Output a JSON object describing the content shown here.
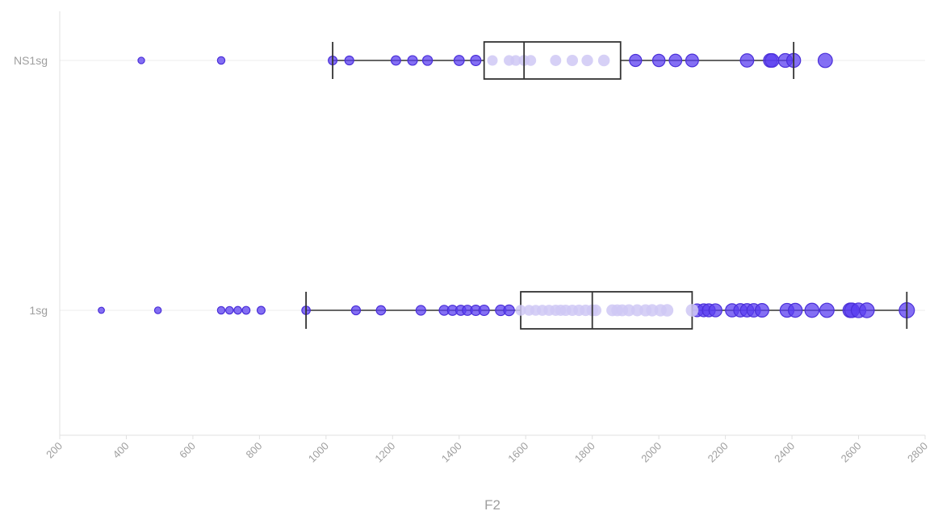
{
  "chart_data": {
    "type": "box",
    "orientation": "horizontal",
    "xlabel": "F2",
    "ylabel": "",
    "xlim": [
      200,
      2800
    ],
    "x_ticks": [
      "200",
      "400",
      "600",
      "800",
      "1000",
      "1200",
      "1400",
      "1600",
      "1800",
      "2000",
      "2200",
      "2400",
      "2600",
      "2800"
    ],
    "categories": [
      "NS1sg",
      "1sg"
    ],
    "grid": "horizontal-category-lines",
    "colors": {
      "point_fill": "#5b3ff0",
      "point_stroke": "#4a2fd8",
      "inbox_fill": "#cfc8f5",
      "box_stroke": "#333333",
      "grid": "#eeeeee",
      "axis": "#e0e0e0"
    },
    "groups": [
      {
        "category": "NS1sg",
        "box": {
          "min": 1020,
          "q1": 1475,
          "median": 1595,
          "q3": 1885,
          "max": 2405
        },
        "points": [
          445,
          685,
          1020,
          1070,
          1210,
          1260,
          1305,
          1400,
          1450,
          1500,
          1550,
          1570,
          1595,
          1615,
          1690,
          1740,
          1785,
          1835,
          1930,
          2000,
          2050,
          2100,
          2265,
          2335,
          2340,
          2380,
          2405,
          2500
        ]
      },
      {
        "category": "1sg",
        "box": {
          "min": 940,
          "q1": 1585,
          "median": 1800,
          "q3": 2100,
          "max": 2745
        },
        "points": [
          325,
          495,
          685,
          710,
          735,
          760,
          805,
          940,
          1090,
          1165,
          1285,
          1355,
          1380,
          1405,
          1425,
          1450,
          1475,
          1525,
          1550,
          1585,
          1610,
          1630,
          1650,
          1670,
          1690,
          1705,
          1720,
          1740,
          1760,
          1780,
          1800,
          1810,
          1860,
          1875,
          1890,
          1910,
          1935,
          1960,
          1980,
          2005,
          2025,
          2100,
          2115,
          2135,
          2150,
          2170,
          2220,
          2245,
          2265,
          2285,
          2310,
          2385,
          2410,
          2460,
          2505,
          2575,
          2580,
          2600,
          2625,
          2745
        ]
      }
    ]
  }
}
